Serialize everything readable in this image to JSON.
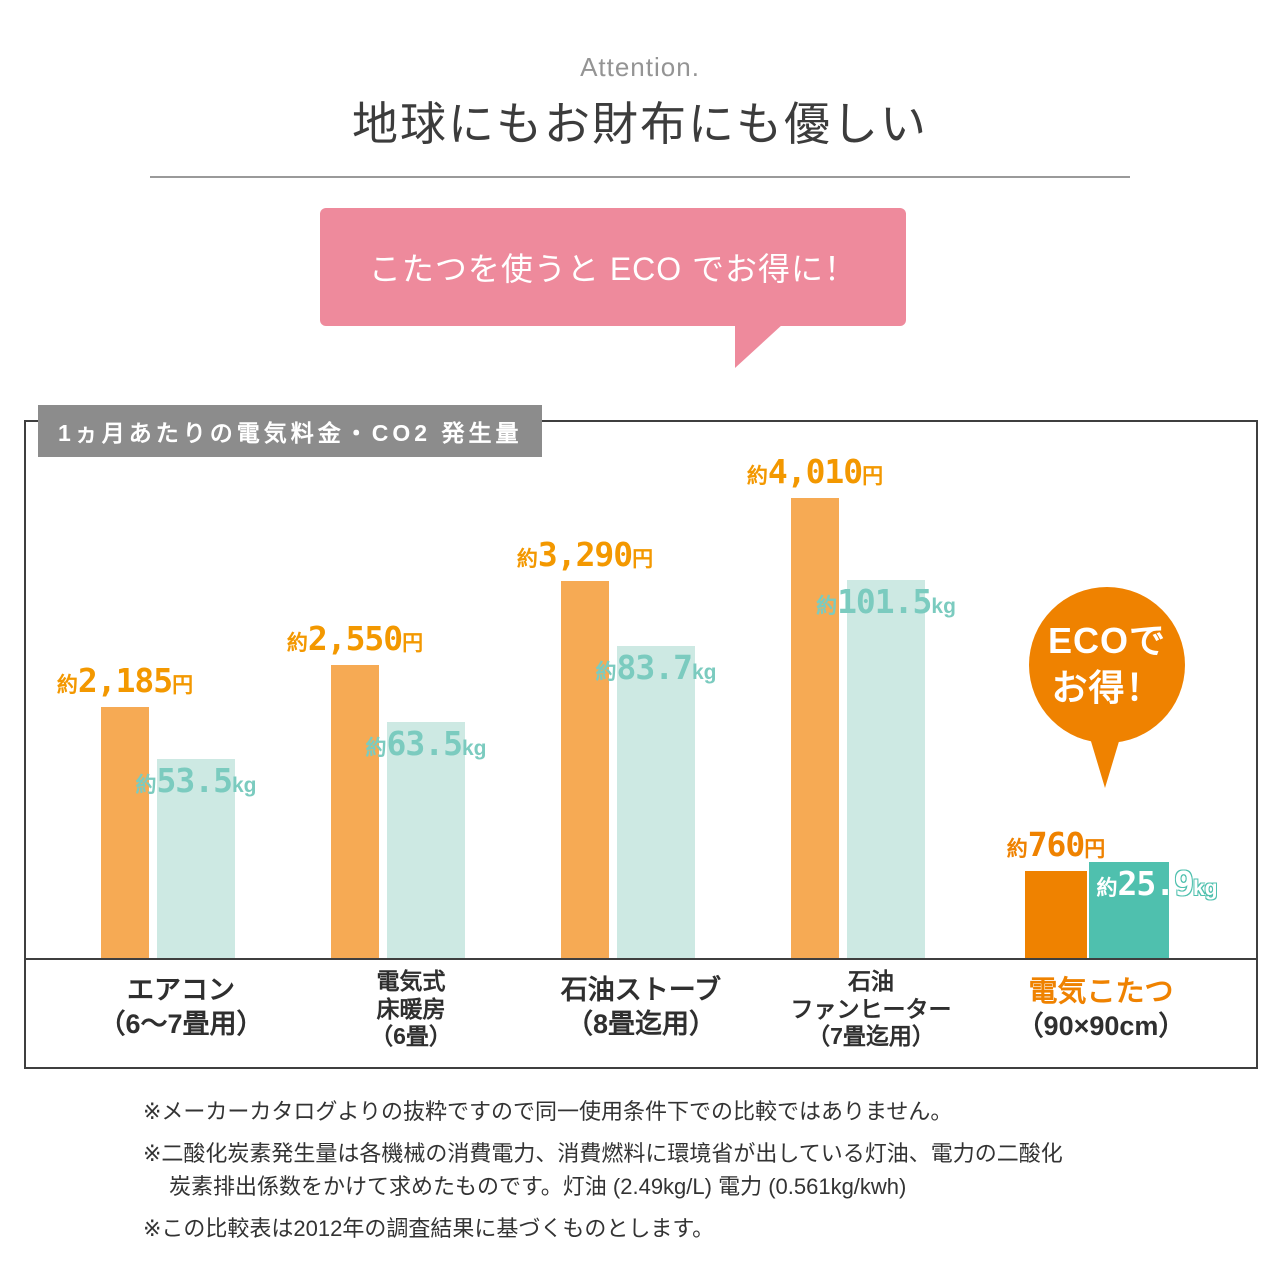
{
  "header": {
    "attention": "Attention.",
    "title": "地球にもお財布にも優しい"
  },
  "bubble": {
    "text": "こたつを使うと ECO でお得に！",
    "color": "#ee8a9c"
  },
  "chart_data": {
    "type": "bar",
    "title": "1ヵ月あたりの電気料金・CO2 発生量",
    "categories": [
      {
        "lines": [
          "エアコン",
          "（6〜7畳用）"
        ],
        "highlight": false
      },
      {
        "lines": [
          "電気式",
          "床暖房",
          "（6畳）"
        ],
        "highlight": false
      },
      {
        "lines": [
          "石油ストーブ",
          "（8畳迄用）"
        ],
        "highlight": false
      },
      {
        "lines": [
          "石油",
          "ファンヒーター",
          "（7畳迄用）"
        ],
        "highlight": false
      },
      {
        "lines": [
          "電気こたつ",
          "（90×90cm）"
        ],
        "highlight": true
      }
    ],
    "series": [
      {
        "name": "1ヵ月あたりの電気料金",
        "unit": "円",
        "values": [
          2185,
          2550,
          3290,
          4010,
          760
        ],
        "labels": [
          {
            "pre": "約",
            "num": "2,185",
            "suf": "円"
          },
          {
            "pre": "約",
            "num": "2,550",
            "suf": "円"
          },
          {
            "pre": "約",
            "num": "3,290",
            "suf": "円"
          },
          {
            "pre": "約",
            "num": "4,010",
            "suf": "円"
          },
          {
            "pre": "約",
            "num": "760",
            "suf": "円"
          }
        ],
        "color": "#f6aa54",
        "highlight_color": "#ef8200"
      },
      {
        "name": "1ヵ月あたりのCO2発生量",
        "unit": "kg",
        "values": [
          53.5,
          63.5,
          83.7,
          101.5,
          25.9
        ],
        "labels": [
          {
            "pre": "約",
            "num": "53.5",
            "suf": "kg"
          },
          {
            "pre": "約",
            "num": "63.5",
            "suf": "kg"
          },
          {
            "pre": "約",
            "num": "83.7",
            "suf": "kg"
          },
          {
            "pre": "約",
            "num": "101.5",
            "suf": "kg"
          },
          {
            "pre": "約",
            "num": "25.9",
            "suf": "kg"
          }
        ],
        "color": "#cde9e3",
        "highlight_color": "#4fc0ae"
      }
    ],
    "ylim_yen": [
      0,
      4010
    ],
    "ylim_kg": [
      0,
      101.5
    ],
    "grid": false,
    "legend": "none",
    "annotations": [
      {
        "lines": [
          "ECOで",
          "お得！"
        ],
        "color": "#ef8200",
        "target": "電気こたつ"
      }
    ]
  },
  "footnotes": [
    {
      "lines": [
        "※メーカーカタログよりの抜粋ですので同一使用条件下での比較ではありません。"
      ]
    },
    {
      "lines": [
        "※二酸化炭素発生量は各機械の消費電力、消費燃料に環境省が出している灯油、電力の二酸化",
        "炭素排出係数をかけて求めたものです。灯油 (2.49kg/L) 電力 (0.561kg/kwh)"
      ]
    },
    {
      "lines": [
        "※この比較表は2012年の調査結果に基づくものとします。"
      ]
    }
  ]
}
